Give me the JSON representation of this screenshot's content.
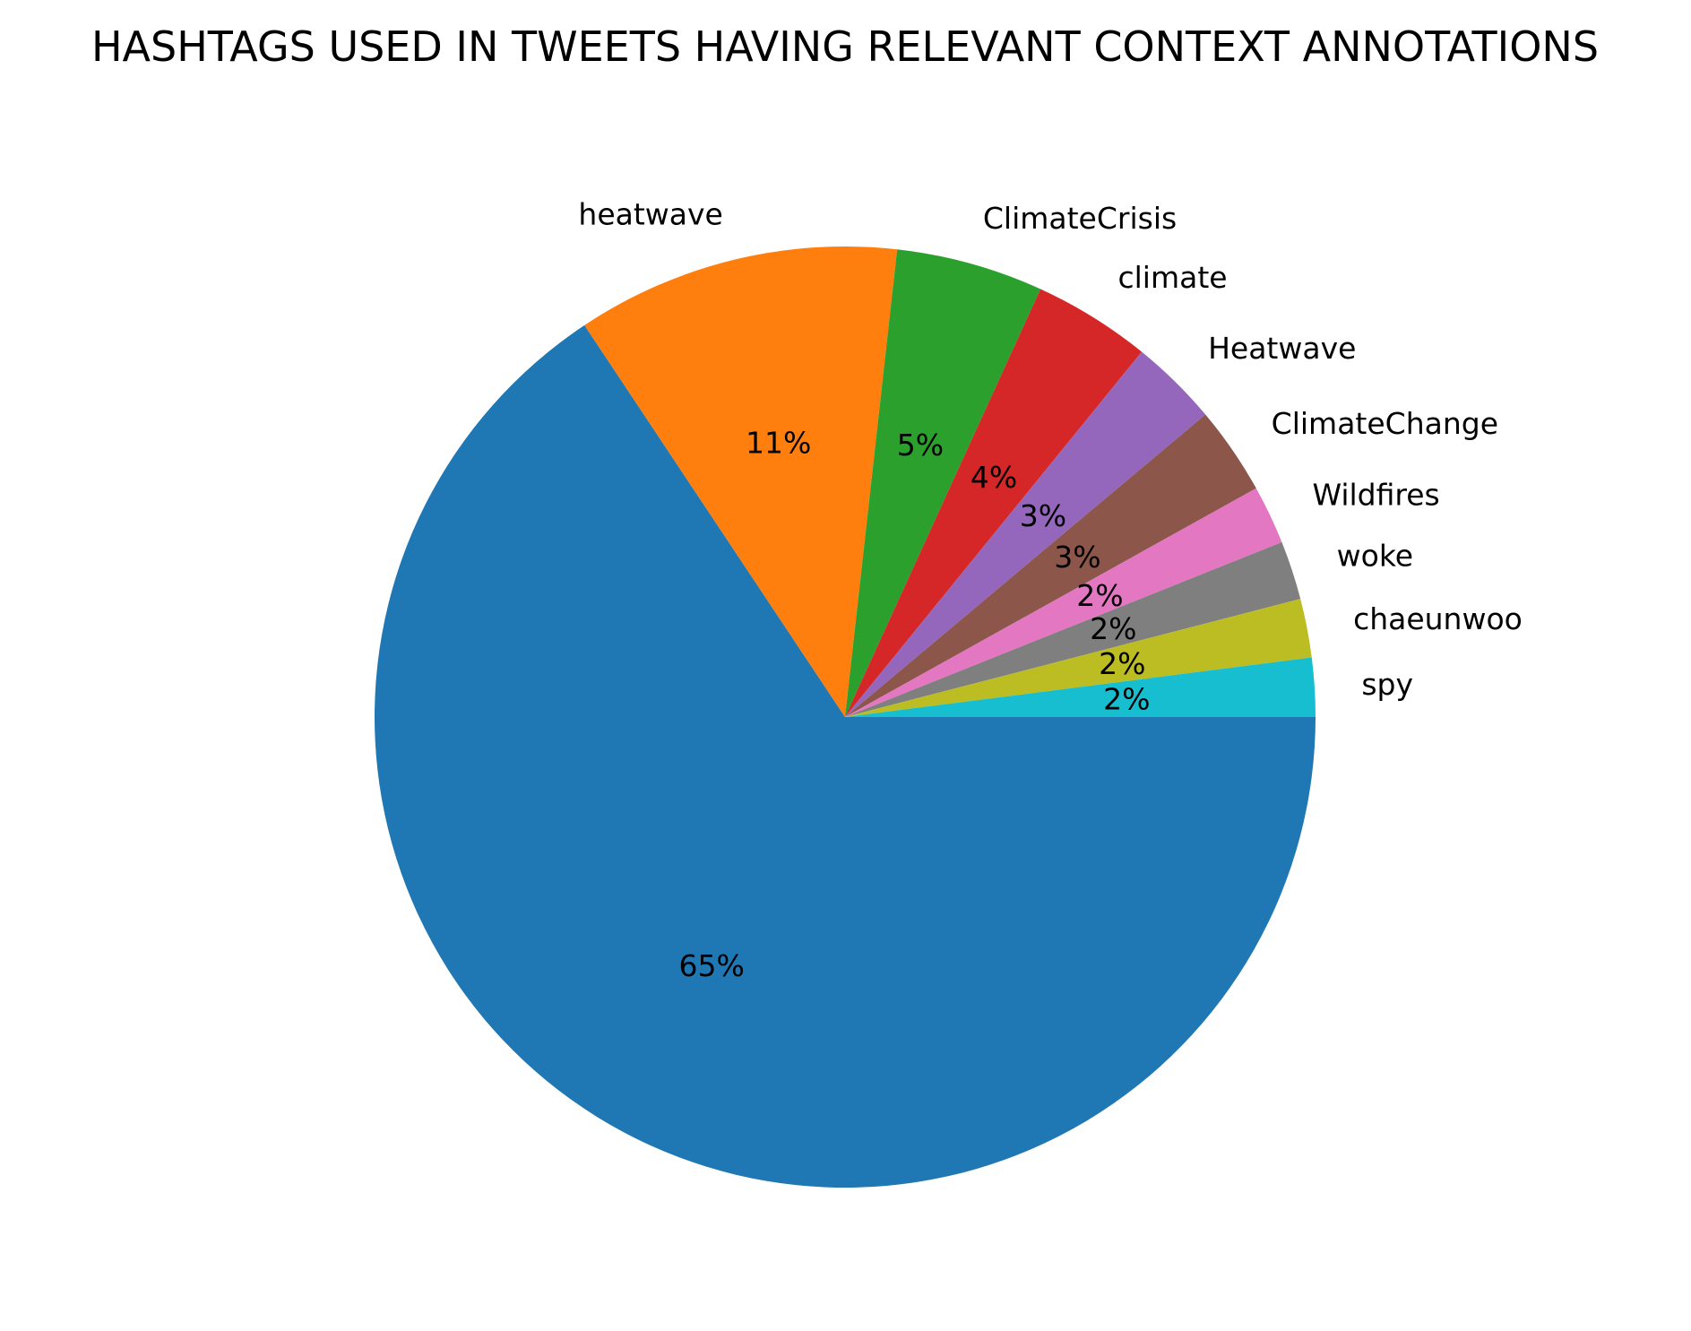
{
  "chart_data": {
    "type": "pie",
    "title": "HASHTAGS USED IN TWEETS HAVING RELEVANT CONTEXT ANNOTATIONS",
    "start_angle_deg": 0,
    "direction": "clockwise",
    "slices": [
      {
        "label": "",
        "value": 65,
        "pct_label": "65%",
        "color": "#1f77b4"
      },
      {
        "label": "heatwave",
        "value": 11,
        "pct_label": "11%",
        "color": "#ff7f0e"
      },
      {
        "label": "ClimateCrisis",
        "value": 5,
        "pct_label": "5%",
        "color": "#2ca02c"
      },
      {
        "label": "climate",
        "value": 4,
        "pct_label": "4%",
        "color": "#d62728"
      },
      {
        "label": "Heatwave",
        "value": 3,
        "pct_label": "3%",
        "color": "#9467bd"
      },
      {
        "label": "ClimateChange",
        "value": 3,
        "pct_label": "3%",
        "color": "#8c564b"
      },
      {
        "label": "Wildfires",
        "value": 2,
        "pct_label": "2%",
        "color": "#e377c2"
      },
      {
        "label": "woke",
        "value": 2,
        "pct_label": "2%",
        "color": "#7f7f7f"
      },
      {
        "label": "chaeunwoo",
        "value": 2,
        "pct_label": "2%",
        "color": "#bcbd22"
      },
      {
        "label": "spy",
        "value": 2,
        "pct_label": "2%",
        "color": "#17becf"
      }
    ]
  }
}
